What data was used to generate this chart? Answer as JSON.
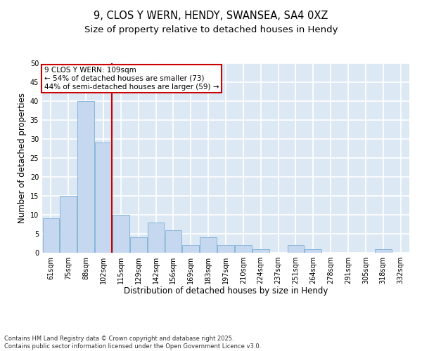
{
  "title_line1": "9, CLOS Y WERN, HENDY, SWANSEA, SA4 0XZ",
  "title_line2": "Size of property relative to detached houses in Hendy",
  "xlabel": "Distribution of detached houses by size in Hendy",
  "ylabel": "Number of detached properties",
  "categories": [
    "61sqm",
    "75sqm",
    "88sqm",
    "102sqm",
    "115sqm",
    "129sqm",
    "142sqm",
    "156sqm",
    "169sqm",
    "183sqm",
    "197sqm",
    "210sqm",
    "224sqm",
    "237sqm",
    "251sqm",
    "264sqm",
    "278sqm",
    "291sqm",
    "305sqm",
    "318sqm",
    "332sqm"
  ],
  "values": [
    9,
    15,
    40,
    29,
    10,
    4,
    8,
    6,
    2,
    4,
    2,
    2,
    1,
    0,
    2,
    1,
    0,
    0,
    0,
    1,
    0
  ],
  "bar_color": "#c5d8f0",
  "bar_edge_color": "#7aafd4",
  "background_color": "#dde8f5",
  "grid_color": "#ffffff",
  "vline_x": 3.5,
  "vline_color": "#cc0000",
  "annotation_text": "9 CLOS Y WERN: 109sqm\n← 54% of detached houses are smaller (73)\n44% of semi-detached houses are larger (59) →",
  "annotation_box_color": "#cc0000",
  "ylim": [
    0,
    50
  ],
  "yticks": [
    0,
    5,
    10,
    15,
    20,
    25,
    30,
    35,
    40,
    45,
    50
  ],
  "footer_text": "Contains HM Land Registry data © Crown copyright and database right 2025.\nContains public sector information licensed under the Open Government Licence v3.0.",
  "title_fontsize": 10.5,
  "subtitle_fontsize": 9.5,
  "axis_label_fontsize": 8.5,
  "tick_fontsize": 7,
  "annotation_fontsize": 7.5,
  "footer_fontsize": 6
}
